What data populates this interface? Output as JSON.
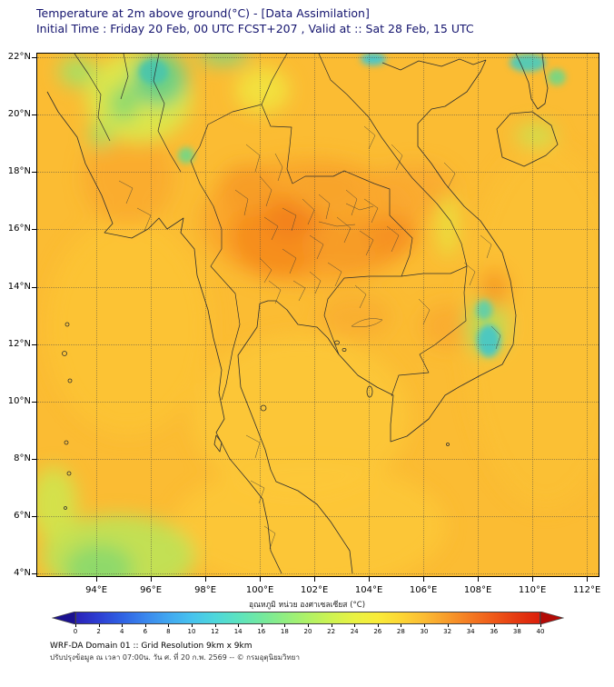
{
  "title": {
    "line1": "Temperature at 2m above ground(°C) - [Data Assimilation]",
    "line2": "Initial Time : Friday 20 Feb, 00 UTC FCST+207 , Valid at :: Sat 28 Feb, 15 UTC"
  },
  "map": {
    "extent": {
      "lon_min": 91.83,
      "lon_max": 112.43,
      "lat_min": 3.91,
      "lat_max": 22.13
    },
    "lon_ticks": [
      {
        "value": 94,
        "label": "94°E"
      },
      {
        "value": 96,
        "label": "96°E"
      },
      {
        "value": 98,
        "label": "98°E"
      },
      {
        "value": 100,
        "label": "100°E"
      },
      {
        "value": 102,
        "label": "102°E"
      },
      {
        "value": 104,
        "label": "104°E"
      },
      {
        "value": 106,
        "label": "106°E"
      },
      {
        "value": 108,
        "label": "108°E"
      },
      {
        "value": 110,
        "label": "110°E"
      },
      {
        "value": 112,
        "label": "112°E"
      }
    ],
    "lat_ticks": [
      {
        "value": 22,
        "label": "22°N"
      },
      {
        "value": 20,
        "label": "20°N"
      },
      {
        "value": 18,
        "label": "18°N"
      },
      {
        "value": 16,
        "label": "16°N"
      },
      {
        "value": 14,
        "label": "14°N"
      },
      {
        "value": 12,
        "label": "12°N"
      },
      {
        "value": 10,
        "label": "10°N"
      },
      {
        "value": 8,
        "label": "8°N"
      },
      {
        "value": 6,
        "label": "6°N"
      },
      {
        "value": 4,
        "label": "4°N"
      }
    ],
    "base_color": "#FBBC33"
  },
  "colorbar": {
    "label": "อุณหภูมิ หน่วย องศาเซลเซียส (°C)",
    "ticks": [
      0,
      2,
      4,
      6,
      8,
      10,
      12,
      14,
      16,
      18,
      20,
      22,
      24,
      26,
      28,
      30,
      32,
      34,
      36,
      38,
      40
    ],
    "under_color": "#1B1190",
    "over_color": "#B30A06",
    "stops": [
      {
        "t": 0,
        "c": "#2A23B8"
      },
      {
        "t": 2,
        "c": "#2D3FD3"
      },
      {
        "t": 4,
        "c": "#2F63E4"
      },
      {
        "t": 6,
        "c": "#3A87ED"
      },
      {
        "t": 8,
        "c": "#41A8F0"
      },
      {
        "t": 10,
        "c": "#47C3EE"
      },
      {
        "t": 12,
        "c": "#4ED7DB"
      },
      {
        "t": 14,
        "c": "#5CE3BF"
      },
      {
        "t": 16,
        "c": "#73E99F"
      },
      {
        "t": 18,
        "c": "#91EE81"
      },
      {
        "t": 20,
        "c": "#B0F266"
      },
      {
        "t": 22,
        "c": "#CEF351"
      },
      {
        "t": 24,
        "c": "#E9F243"
      },
      {
        "t": 26,
        "c": "#F9EC39"
      },
      {
        "t": 28,
        "c": "#FCD634"
      },
      {
        "t": 30,
        "c": "#FBBC33"
      },
      {
        "t": 32,
        "c": "#F89C2B"
      },
      {
        "t": 34,
        "c": "#F47A22"
      },
      {
        "t": 36,
        "c": "#EF5A19"
      },
      {
        "t": 38,
        "c": "#E53A11"
      },
      {
        "t": 40,
        "c": "#DB1F0B"
      }
    ]
  },
  "footer": {
    "line1": "WRF-DA Domain 01 :: Grid Resolution 9km x 9km",
    "line2": "ปรับปรุงข้อมูล ณ เวลา 07:00น. วัน ศ. ที่ 20 ก.พ. 2569 -- © กรมอุตุนิยมวิทยา"
  },
  "chart_data": {
    "type": "heatmap",
    "title": "Temperature at 2m above ground (°C) - Data Assimilation, WRF-DA Domain 01",
    "units": "°C",
    "colorbar_range": [
      0,
      40
    ],
    "lon_range_deg_e": [
      94,
      112
    ],
    "lat_range_deg_n": [
      4,
      22
    ],
    "dominant_temp_c": 30,
    "notable_regions": [
      {
        "region": "Central / lower-north Thailand and Khorat plateau (15-17N, 99-105E)",
        "approx_temp_c": 34
      },
      {
        "region": "Northern Myanmar highlands (20-22N, 94-97E)",
        "approx_temp_c": 16
      },
      {
        "region": "Vietnam central highlands (12-13.5N, 108-109E)",
        "approx_temp_c": 14
      },
      {
        "region": "Sea, southwest corner (4-6.5N, 92-97E)",
        "approx_temp_c": 22
      },
      {
        "region": "Open sea and most remaining land",
        "approx_temp_c": 30
      }
    ]
  }
}
